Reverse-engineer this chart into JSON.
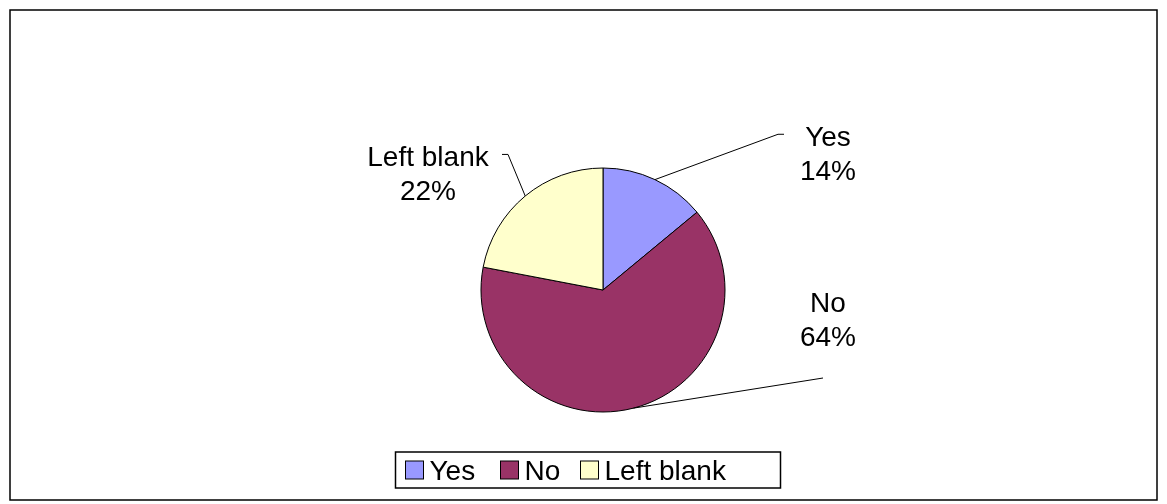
{
  "chart_data": {
    "type": "pie",
    "categories": [
      "Yes",
      "No",
      "Left blank"
    ],
    "values": [
      14,
      64,
      22
    ],
    "colors": [
      "#9999ff",
      "#993366",
      "#ffffcc"
    ],
    "value_labels": [
      "14%",
      "64%",
      "22%"
    ],
    "legend": "bottom"
  }
}
